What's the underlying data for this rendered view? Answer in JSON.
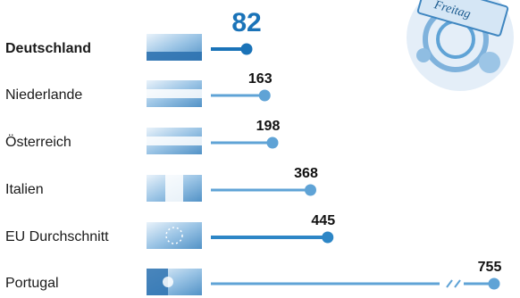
{
  "chart_data": {
    "type": "lollipop",
    "categories": [
      "Deutschland",
      "Niederlande",
      "Österreich",
      "Italien",
      "EU Durchschnitt",
      "Portugal"
    ],
    "values": [
      82,
      163,
      198,
      368,
      445,
      755
    ],
    "highlight": "Deutschland",
    "broken_axis_for": "Portugal",
    "colors": {
      "highlight": "#1a73b8",
      "normal": "#5fa3d6",
      "eu": "#2d86c6",
      "label_highlight": "#1a73b8",
      "label": "#111111"
    },
    "icons": [
      "germany-flag-icon",
      "netherlands-flag-icon",
      "austria-flag-icon",
      "italy-flag-icon",
      "eu-flag-icon",
      "portugal-flag-icon"
    ],
    "decoration": "freitag-newspaper-illustration",
    "decoration_text": "Freitag"
  }
}
